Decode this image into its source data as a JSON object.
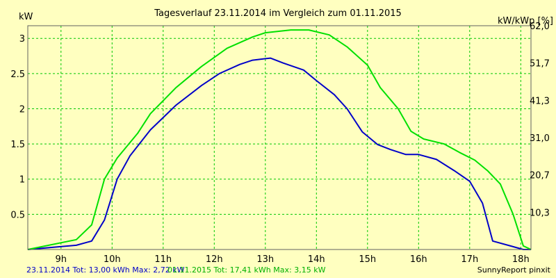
{
  "chart_data": {
    "type": "line",
    "title": "Tagesverlauf 23.11.2014 im Vergleich zum 01.11.2015",
    "ylabel_left": "kW",
    "ylabel_right": "kW/kWp [%]",
    "xlim": [
      8.35,
      18.2
    ],
    "ylim": [
      0,
      3.18
    ],
    "x_ticks": [
      {
        "v": 9,
        "label": "9h"
      },
      {
        "v": 10,
        "label": "10h"
      },
      {
        "v": 11,
        "label": "11h"
      },
      {
        "v": 12,
        "label": "12h"
      },
      {
        "v": 13,
        "label": "13h"
      },
      {
        "v": 14,
        "label": "14h"
      },
      {
        "v": 15,
        "label": "15h"
      },
      {
        "v": 16,
        "label": "16h"
      },
      {
        "v": 17,
        "label": "17h"
      },
      {
        "v": 18,
        "label": "18h"
      }
    ],
    "y_ticks_left": [
      {
        "v": 0.5,
        "label": "0.5"
      },
      {
        "v": 1,
        "label": "1"
      },
      {
        "v": 1.5,
        "label": "1.5"
      },
      {
        "v": 2,
        "label": "2"
      },
      {
        "v": 2.5,
        "label": "2.5"
      },
      {
        "v": 3,
        "label": "3"
      }
    ],
    "y_ticks_right": [
      {
        "v": 0.53,
        "label": "10,3"
      },
      {
        "v": 1.06,
        "label": "20,7"
      },
      {
        "v": 1.59,
        "label": "31,0"
      },
      {
        "v": 2.12,
        "label": "41,3"
      },
      {
        "v": 2.65,
        "label": "51,7"
      },
      {
        "v": 3.18,
        "label": "62,0"
      }
    ],
    "grid": true,
    "series": [
      {
        "color": "#0000c8",
        "points": [
          [
            8.35,
            0
          ],
          [
            9.3,
            0.06
          ],
          [
            9.6,
            0.12
          ],
          [
            9.85,
            0.42
          ],
          [
            10.1,
            1.0
          ],
          [
            10.35,
            1.33
          ],
          [
            10.75,
            1.7
          ],
          [
            11.25,
            2.05
          ],
          [
            11.75,
            2.33
          ],
          [
            12.1,
            2.5
          ],
          [
            12.5,
            2.63
          ],
          [
            12.75,
            2.69
          ],
          [
            13.1,
            2.72
          ],
          [
            13.35,
            2.65
          ],
          [
            13.75,
            2.55
          ],
          [
            14.0,
            2.4
          ],
          [
            14.35,
            2.2
          ],
          [
            14.6,
            2.0
          ],
          [
            14.9,
            1.67
          ],
          [
            15.2,
            1.49
          ],
          [
            15.45,
            1.42
          ],
          [
            15.75,
            1.35
          ],
          [
            16.0,
            1.35
          ],
          [
            16.35,
            1.28
          ],
          [
            16.7,
            1.12
          ],
          [
            17.0,
            0.97
          ],
          [
            17.25,
            0.66
          ],
          [
            17.45,
            0.12
          ],
          [
            17.8,
            0.05
          ],
          [
            18.05,
            0
          ],
          [
            18.2,
            0
          ]
        ]
      },
      {
        "color": "#00e000",
        "points": [
          [
            8.35,
            0
          ],
          [
            9.3,
            0.14
          ],
          [
            9.6,
            0.35
          ],
          [
            9.85,
            1.0
          ],
          [
            10.1,
            1.3
          ],
          [
            10.5,
            1.65
          ],
          [
            10.75,
            1.93
          ],
          [
            11.25,
            2.3
          ],
          [
            11.75,
            2.6
          ],
          [
            12.25,
            2.86
          ],
          [
            12.75,
            3.02
          ],
          [
            13.0,
            3.08
          ],
          [
            13.5,
            3.12
          ],
          [
            13.85,
            3.12
          ],
          [
            14.25,
            3.05
          ],
          [
            14.6,
            2.88
          ],
          [
            15.0,
            2.62
          ],
          [
            15.25,
            2.3
          ],
          [
            15.6,
            2.0
          ],
          [
            15.85,
            1.68
          ],
          [
            16.1,
            1.57
          ],
          [
            16.5,
            1.5
          ],
          [
            16.8,
            1.38
          ],
          [
            17.1,
            1.27
          ],
          [
            17.35,
            1.12
          ],
          [
            17.6,
            0.93
          ],
          [
            17.85,
            0.5
          ],
          [
            18.05,
            0.05
          ],
          [
            18.2,
            0
          ]
        ]
      }
    ],
    "footer": {
      "series_a": "23.11.2014 Tot: 13,00 kWh Max: 2,72 kW",
      "series_b": "01.11.2015 Tot: 17,41 kWh Max: 3,15 kW",
      "credit": "SunnyReport pinxit"
    }
  }
}
